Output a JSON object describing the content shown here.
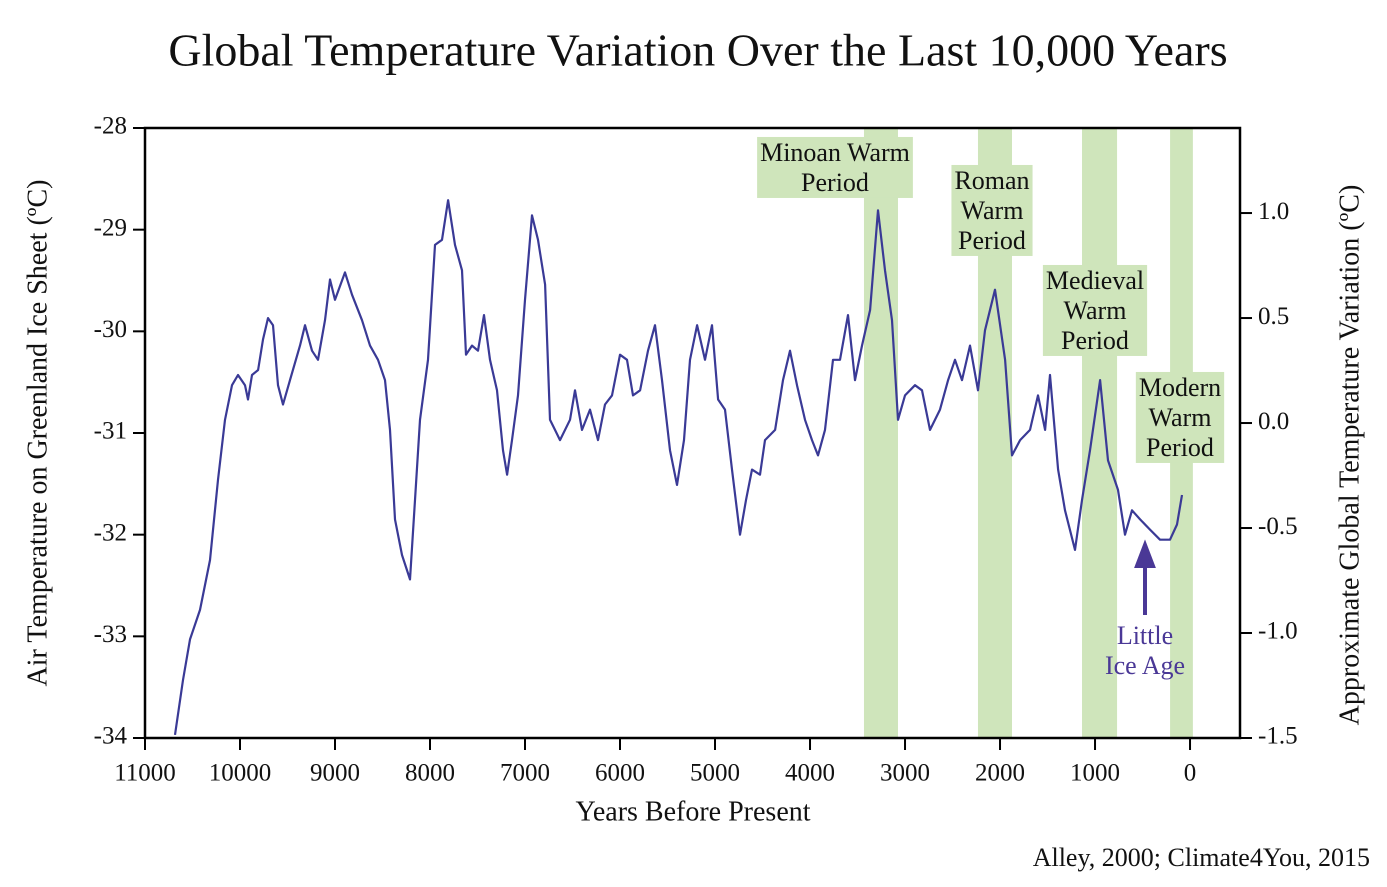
{
  "chart_data": {
    "type": "line",
    "title": "Global Temperature Variation Over the Last 10,000 Years",
    "xlabel": "Years Before Present",
    "ylabel": "Air Temperature on Greenland Ice Sheet (ºC)",
    "y2label": "Approximate Global Temperature Variation (ºC)",
    "source": "Alley, 2000; Climate4You, 2015",
    "xlim": [
      11000,
      -526
    ],
    "xticks": [
      11000,
      10000,
      9000,
      8000,
      7000,
      6000,
      5000,
      4000,
      3000,
      2000,
      1000,
      0
    ],
    "ylim": [
      -34,
      -28
    ],
    "yticks": [
      -34,
      -33,
      -32,
      -31,
      -30,
      -29,
      -28
    ],
    "y2lim": [
      -1.5,
      1.405
    ],
    "y2ticks": [
      {
        "value": -1.5,
        "label": "-1.5"
      },
      {
        "value": -1,
        "label": "-1.0"
      },
      -0.5,
      {
        "value": 0,
        "label": "0.0"
      },
      0.5,
      {
        "value": 1,
        "label": "1.0"
      }
    ],
    "periods": [
      {
        "lines": [
          "Minoan Warm",
          "Period"
        ],
        "start": 3432,
        "end": 3074
      },
      {
        "lines": [
          "Roman",
          "Warm",
          "Period"
        ],
        "start": 2232,
        "end": 1874
      },
      {
        "lines": [
          "Medieval",
          "Warm",
          "Period"
        ],
        "start": 1137,
        "end": 768
      },
      {
        "lines": [
          "Modern",
          "Warm",
          "Period"
        ],
        "start": 210,
        "end": -30
      }
    ],
    "period_color": "#cfe5bb",
    "annotation": {
      "lines": [
        "Little",
        "Ice Age"
      ],
      "color": "#4a3896"
    },
    "x": [
      10684,
      10600,
      10526,
      10421,
      10316,
      10232,
      10158,
      10084,
      10021,
      9947,
      9916,
      9874,
      9810,
      9758,
      9705,
      9653,
      9600,
      9547,
      9474,
      9368,
      9316,
      9242,
      9179,
      9105,
      9053,
      9000,
      8895,
      8821,
      8716,
      8632,
      8547,
      8474,
      8421,
      8368,
      8295,
      8211,
      8158,
      8105,
      8021,
      7947,
      7874,
      7810,
      7737,
      7663,
      7621,
      7558,
      7495,
      7432,
      7368,
      7295,
      7232,
      7189,
      7137,
      7074,
      7000,
      6926,
      6863,
      6789,
      6737,
      6684,
      6632,
      6526,
      6474,
      6400,
      6316,
      6232,
      6158,
      6084,
      6000,
      5926,
      5863,
      5789,
      5705,
      5632,
      5558,
      5474,
      5400,
      5326,
      5263,
      5189,
      5105,
      5032,
      4968,
      4895,
      4821,
      4737,
      4674,
      4611,
      4526,
      4474,
      4368,
      4284,
      4211,
      4137,
      4053,
      3979,
      3916,
      3842,
      3758,
      3684,
      3600,
      3526,
      3453,
      3368,
      3284,
      3211,
      3137,
      3074,
      3000,
      2895,
      2821,
      2737,
      2632,
      2547,
      2474,
      2400,
      2316,
      2232,
      2158,
      2053,
      1947,
      1874,
      1789,
      1684,
      1600,
      1526,
      1474,
      1389,
      1316,
      1211,
      1137,
      1053,
      947,
      863,
      758,
      684,
      611,
      526,
      421,
      316,
      211,
      137,
      84
    ],
    "series": [
      {
        "name": "Greenland air temperature",
        "color": "#3a3a96",
        "values": [
          -33.97,
          -33.43,
          -33.03,
          -32.74,
          -32.25,
          -31.46,
          -30.87,
          -30.53,
          -30.43,
          -30.53,
          -30.67,
          -30.43,
          -30.38,
          -30.08,
          -29.87,
          -29.94,
          -30.53,
          -30.72,
          -30.48,
          -30.14,
          -29.94,
          -30.19,
          -30.28,
          -29.89,
          -29.49,
          -29.69,
          -29.42,
          -29.64,
          -29.89,
          -30.14,
          -30.28,
          -30.48,
          -30.97,
          -31.85,
          -32.2,
          -32.44,
          -31.66,
          -30.87,
          -30.28,
          -29.15,
          -29.1,
          -28.71,
          -29.15,
          -29.4,
          -30.23,
          -30.14,
          -30.19,
          -29.84,
          -30.28,
          -30.58,
          -31.17,
          -31.41,
          -31.07,
          -30.63,
          -29.69,
          -28.86,
          -29.1,
          -29.54,
          -30.87,
          -30.97,
          -31.07,
          -30.87,
          -30.58,
          -30.97,
          -30.77,
          -31.07,
          -30.72,
          -30.63,
          -30.23,
          -30.28,
          -30.63,
          -30.58,
          -30.19,
          -29.94,
          -30.48,
          -31.17,
          -31.51,
          -31.07,
          -30.28,
          -29.94,
          -30.28,
          -29.94,
          -30.67,
          -30.77,
          -31.36,
          -32,
          -31.66,
          -31.36,
          -31.41,
          -31.07,
          -30.97,
          -30.48,
          -30.19,
          -30.53,
          -30.87,
          -31.07,
          -31.22,
          -30.97,
          -30.28,
          -30.28,
          -29.84,
          -30.48,
          -30.14,
          -29.79,
          -28.81,
          -29.4,
          -29.89,
          -30.87,
          -30.63,
          -30.53,
          -30.58,
          -30.97,
          -30.77,
          -30.48,
          -30.28,
          -30.48,
          -30.14,
          -30.58,
          -29.99,
          -29.59,
          -30.28,
          -31.22,
          -31.07,
          -30.97,
          -30.63,
          -30.97,
          -30.43,
          -31.36,
          -31.76,
          -32.15,
          -31.66,
          -31.17,
          -30.48,
          -31.27,
          -31.56,
          -32,
          -31.76,
          -31.85,
          -31.95,
          -32.05,
          -32.05,
          -31.9,
          -31.61
        ]
      }
    ]
  }
}
